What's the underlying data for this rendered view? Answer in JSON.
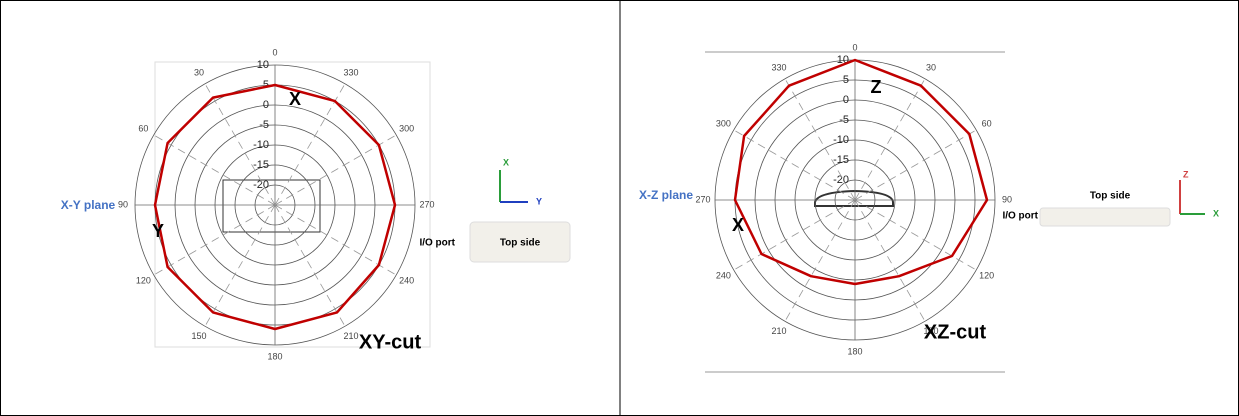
{
  "chart_data": [
    {
      "type": "polar",
      "direction": "counterclockwise",
      "title": "X-Y plane",
      "caption": "XY-cut",
      "axis_markers": [
        "X",
        "Y"
      ],
      "device_labels": [
        "I/O port",
        "Top side"
      ],
      "icon_axes": [
        "X",
        "Y"
      ],
      "theta": [
        0,
        30,
        60,
        90,
        120,
        150,
        180,
        210,
        240,
        270,
        300,
        330
      ],
      "theta_labels": [
        "0",
        "30",
        "60",
        "90",
        "120",
        "150",
        "180",
        "210",
        "240",
        "270",
        "300",
        "330"
      ],
      "series": [
        {
          "color": "#c00000",
          "values": [
            5,
            6,
            6,
            5,
            6,
            6,
            6,
            6,
            5,
            5,
            5,
            5
          ]
        }
      ],
      "rlim": [
        -25,
        10
      ],
      "rticks": [
        10,
        5,
        0,
        -5,
        -10,
        -15,
        -20
      ]
    },
    {
      "type": "polar",
      "direction": "clockwise",
      "title": "X-Z plane",
      "caption": "XZ-cut",
      "axis_markers": [
        "Z",
        "X"
      ],
      "device_labels": [
        "Top side",
        "I/O port"
      ],
      "icon_axes": [
        "Z",
        "X"
      ],
      "theta": [
        0,
        30,
        60,
        90,
        120,
        150,
        180,
        210,
        240,
        270,
        300,
        330
      ],
      "theta_labels": [
        "0",
        "30",
        "60",
        "90",
        "120",
        "150",
        "180",
        "210",
        "240",
        "270",
        "300",
        "330"
      ],
      "series": [
        {
          "color": "#c00000",
          "values": [
            10,
            8,
            8,
            8,
            3,
            -3,
            -4,
            -3,
            2,
            5,
            7,
            8
          ]
        }
      ],
      "rlim": [
        -25,
        10
      ],
      "rticks": [
        10,
        5,
        0,
        -5,
        -10,
        -15,
        -20
      ]
    }
  ]
}
